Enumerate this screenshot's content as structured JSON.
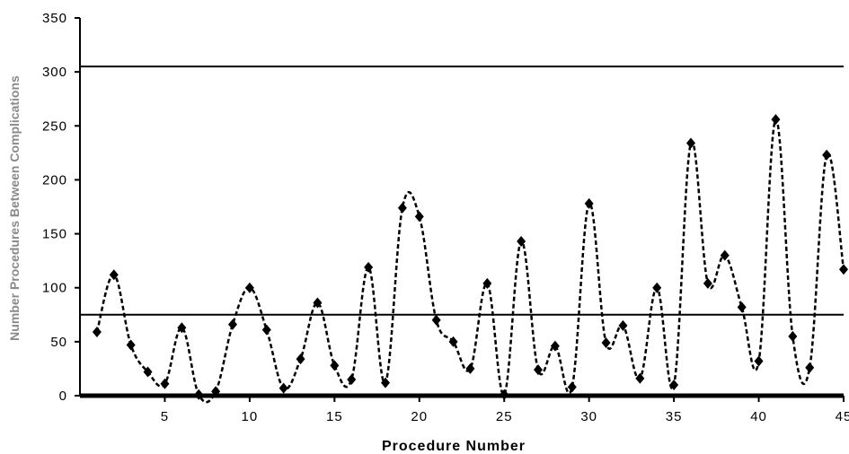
{
  "chart_data": {
    "type": "line",
    "title": "",
    "xlabel": "Procedure  Number",
    "ylabel": "Number Procedures Between Complications",
    "xlim": [
      0,
      45
    ],
    "ylim": [
      0,
      350
    ],
    "x_ticks": [
      5,
      10,
      15,
      20,
      25,
      30,
      35,
      40,
      45
    ],
    "x_tick_labels": [
      "5",
      "10",
      "15",
      "20",
      "25",
      "30",
      "35",
      "40",
      "45"
    ],
    "y_ticks": [
      0,
      50,
      100,
      150,
      200,
      250,
      300,
      350
    ],
    "y_tick_labels": [
      "0",
      "50",
      "100",
      "150",
      "200",
      "250",
      "300",
      "350"
    ],
    "grid": false,
    "reference_lines": [
      {
        "y": 305
      },
      {
        "y": 75
      }
    ],
    "series": [
      {
        "x": [
          1,
          2,
          3,
          4,
          5,
          6,
          7,
          8,
          9,
          10,
          11,
          12,
          13,
          14,
          15,
          16,
          17,
          18,
          19,
          20,
          21,
          22,
          23,
          24,
          25,
          26,
          27,
          28,
          29,
          30,
          31,
          32,
          33,
          34,
          35,
          36,
          37,
          38,
          39,
          40,
          41,
          42,
          43,
          44,
          45
        ],
        "values": [
          59,
          112,
          47,
          22,
          11,
          63,
          1,
          4,
          66,
          100,
          61,
          7,
          34,
          86,
          28,
          15,
          119,
          12,
          174,
          166,
          70,
          50,
          25,
          104,
          1,
          143,
          24,
          46,
          8,
          178,
          49,
          65,
          16,
          100,
          10,
          234,
          104,
          130,
          82,
          32,
          256,
          55,
          26,
          223,
          117
        ]
      }
    ],
    "colors": {
      "line": "#000000",
      "reference": "#000000"
    }
  }
}
